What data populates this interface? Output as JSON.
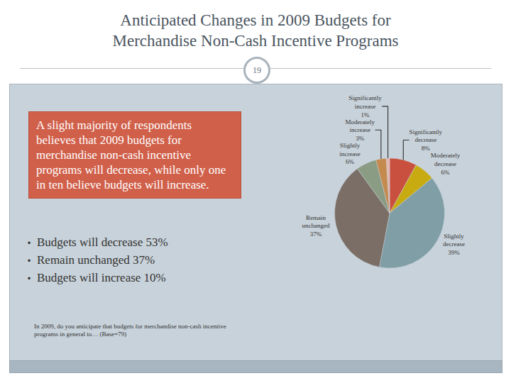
{
  "slide": {
    "title": "Anticipated Changes in 2009 Budgets for Merchandise Non-Cash Incentive Programs",
    "page_number": "19",
    "callout": "A slight majority of respondents believes that 2009 budgets for merchandise non-cash incentive programs will decrease, while only one in ten believe budgets will increase.",
    "bullets": [
      "Budgets will decrease 53%",
      "Remain unchanged 37%",
      "Budgets will increase 10%"
    ],
    "footnote": "In 2009, do you anticipate that budgets for merchandise non-cash incentive programs in general to… (Base=79)"
  },
  "chart_data": {
    "type": "pie",
    "categories": [
      "Significantly decrease",
      "Moderately decrease",
      "Slightly decrease",
      "Remain unchanged",
      "Slightly increase",
      "Moderately increase",
      "Significantly increase"
    ],
    "values": [
      8,
      6,
      39,
      37,
      6,
      3,
      1
    ],
    "value_labels": [
      "8%",
      "6%",
      "39%",
      "37%",
      "6%",
      "3%",
      "1%"
    ],
    "colors": [
      "#c9503e",
      "#c8ab10",
      "#7f9ea6",
      "#7a6e66",
      "#8a9c84",
      "#c48a4e",
      "#e6b7b0"
    ],
    "data_labels": true
  }
}
